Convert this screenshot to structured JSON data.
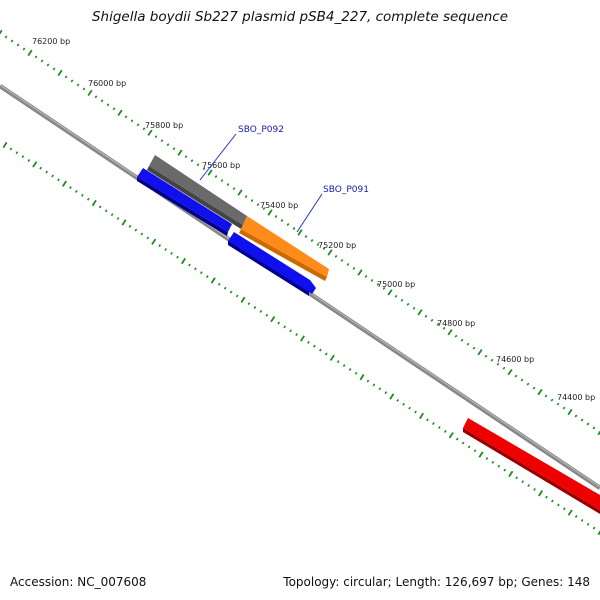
{
  "title": "Shigella boydii Sb227 plasmid pSB4_227, complete sequence",
  "footer": {
    "accession": "Accession: NC_007608",
    "topology": "Topology: circular; Length: 126,697 bp; Genes: 148"
  },
  "ruler_labels": [
    "76200 bp",
    "76000 bp",
    "75800 bp",
    "75600 bp",
    "75400 bp",
    "75200 bp",
    "75000 bp",
    "74800 bp",
    "74600 bp",
    "74400 bp"
  ],
  "gene_labels": [
    "SBO_P092",
    "SBO_P091"
  ],
  "colors": {
    "backbone": "#777777",
    "tick": "#1e8a1e",
    "gray_feature": "#666666",
    "orange_feature": "#ff8c00",
    "blue_feature": "#0000ee",
    "red_feature": "#ee0000",
    "label_blue": "#1a1aa6"
  }
}
